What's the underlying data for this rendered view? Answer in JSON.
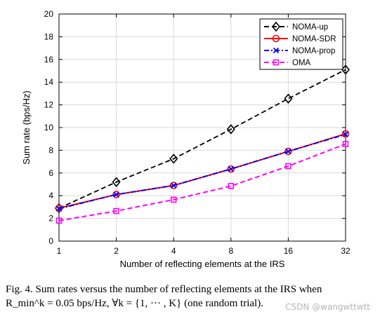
{
  "chart_data": {
    "type": "line",
    "xlabel": "Number of reflecting elements at the IRS",
    "ylabel": "Sum rate (bps/Hz)",
    "categories": [
      "1",
      "2",
      "4",
      "8",
      "16",
      "32"
    ],
    "x_scale": "log2",
    "ylim": [
      0,
      20
    ],
    "yticks": [
      0,
      2,
      4,
      6,
      8,
      10,
      12,
      14,
      16,
      18,
      20
    ],
    "grid": true,
    "legend_position": "top-right",
    "series": [
      {
        "name": "NOMA-up",
        "values": [
          2.9,
          5.2,
          7.25,
          9.85,
          12.55,
          15.1
        ],
        "color": "#000000",
        "dash": "dashed",
        "marker": "diamond"
      },
      {
        "name": "NOMA-SDR",
        "values": [
          2.9,
          4.1,
          4.9,
          6.35,
          7.9,
          9.45
        ],
        "color": "#ff0000",
        "dash": "solid",
        "marker": "circle"
      },
      {
        "name": "NOMA-prop",
        "values": [
          2.85,
          4.1,
          4.9,
          6.35,
          7.9,
          9.4
        ],
        "color": "#0000ff",
        "dash": "dashdot",
        "marker": "x"
      },
      {
        "name": "OMA",
        "values": [
          1.8,
          2.65,
          3.65,
          4.85,
          6.6,
          8.55
        ],
        "color": "#ff00ff",
        "dash": "dashed",
        "marker": "square"
      }
    ]
  },
  "caption": {
    "line1": "Fig. 4.   Sum rates versus the number of reflecting elements at the IRS when",
    "line2": "R_min^k = 0.05 bps/Hz, ∀k = {1, ··· , K} (one random trial)."
  },
  "watermark": "CSDN @wangwttwtt"
}
